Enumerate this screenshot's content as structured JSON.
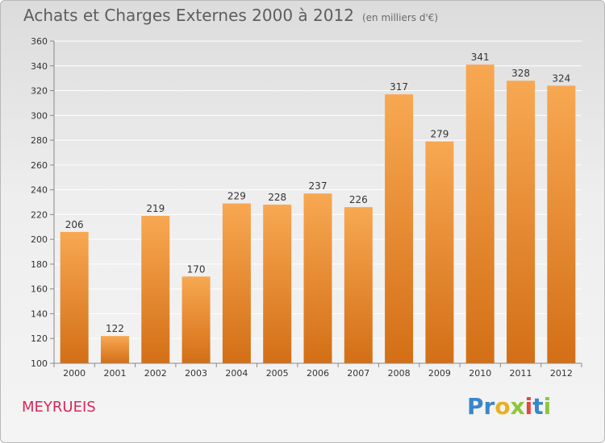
{
  "header": {
    "title": "Achats et Charges Externes 2000 à 2012",
    "subtitle": "(en milliers d'€)"
  },
  "footer": {
    "city": "MEYRUEIS",
    "logo_letters": [
      "P",
      "r",
      "o",
      "x",
      "i",
      "t",
      "i"
    ]
  },
  "colors": {
    "bar_light": "#f8a852",
    "bar_dark": "#d36f16",
    "logo": [
      "#3a86c8",
      "#3a86c8",
      "#e8b021",
      "#8cc63e",
      "#e8453c",
      "#3a86c8",
      "#8cc63e"
    ]
  },
  "chart_data": {
    "type": "bar",
    "title": "Achats et Charges Externes 2000 à 2012",
    "subtitle": "(en milliers d'€)",
    "categories": [
      "2000",
      "2001",
      "2002",
      "2003",
      "2004",
      "2005",
      "2006",
      "2007",
      "2008",
      "2009",
      "2010",
      "2011",
      "2012"
    ],
    "values": [
      206,
      122,
      219,
      170,
      229,
      228,
      237,
      226,
      317,
      279,
      341,
      328,
      324
    ],
    "ylim": [
      100,
      360
    ],
    "yticks": [
      100,
      120,
      140,
      160,
      180,
      200,
      220,
      240,
      260,
      280,
      300,
      320,
      340,
      360
    ],
    "grid": true,
    "data_labels": true
  }
}
